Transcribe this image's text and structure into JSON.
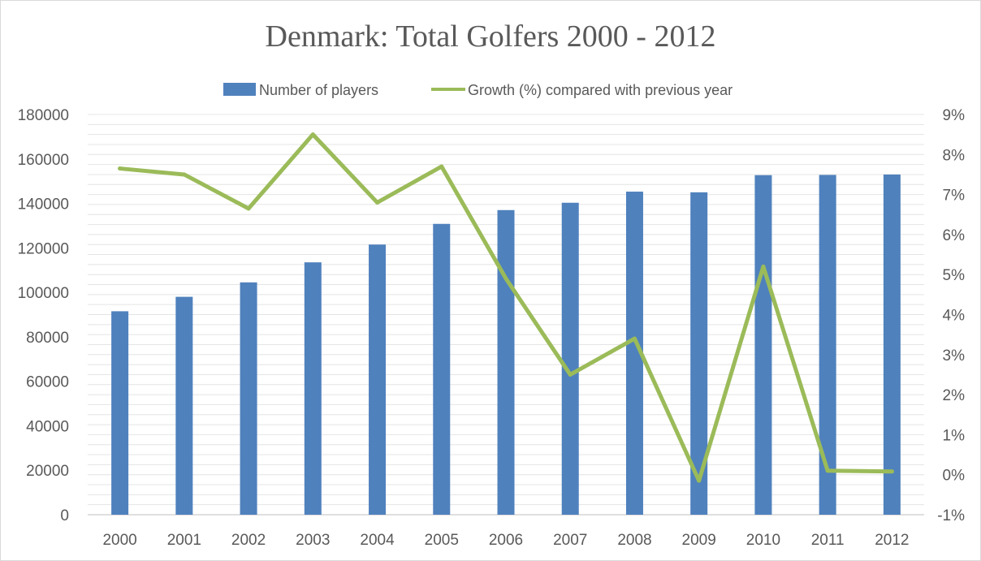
{
  "chart_data": {
    "type": "bar",
    "title": "Denmark: Total Golfers 2000 - 2012",
    "categories": [
      "2000",
      "2001",
      "2002",
      "2003",
      "2004",
      "2005",
      "2006",
      "2007",
      "2008",
      "2009",
      "2010",
      "2011",
      "2012"
    ],
    "series": [
      {
        "name": "Number of players",
        "type": "bar",
        "axis": "left",
        "color": "#4f81bd",
        "values": [
          91500,
          98000,
          104500,
          113500,
          121500,
          130800,
          137000,
          140300,
          145300,
          145000,
          152700,
          152800,
          153000
        ]
      },
      {
        "name": "Growth (%) compared with previous year",
        "type": "line",
        "axis": "right",
        "color": "#9bbb59",
        "values": [
          7.65,
          7.5,
          6.65,
          8.5,
          6.8,
          7.7,
          4.9,
          2.5,
          3.4,
          -0.15,
          5.2,
          0.1,
          0.08
        ]
      }
    ],
    "y_left": {
      "min": 0,
      "max": 180000,
      "step": 20000,
      "ticks": [
        "0",
        "20000",
        "40000",
        "60000",
        "80000",
        "100000",
        "120000",
        "140000",
        "160000",
        "180000"
      ]
    },
    "y_right": {
      "min": -1,
      "max": 9,
      "step": 1,
      "ticks": [
        "-1%",
        "0%",
        "1%",
        "2%",
        "3%",
        "4%",
        "5%",
        "6%",
        "7%",
        "8%",
        "9%"
      ]
    },
    "grid": true,
    "legend_position": "top"
  }
}
